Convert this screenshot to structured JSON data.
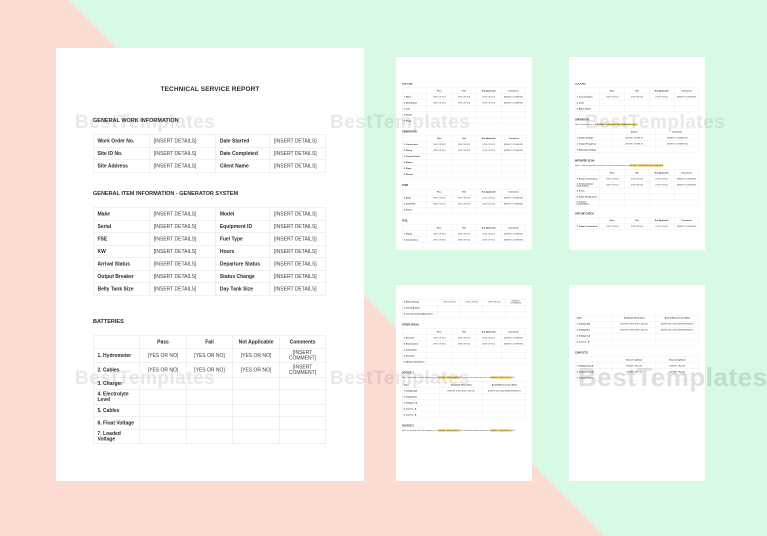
{
  "watermark": {
    "text": "BestTemplates"
  },
  "colors": {
    "background_pink": "#fbdbd2",
    "background_green": "#d8fae5",
    "highlight_yellow": "#fbd84a"
  },
  "page1": {
    "title": "TECHNICAL SERVICE REPORT",
    "work_info": {
      "heading": "GENERAL WORK INFORMATION",
      "table": {
        "rows": [
          [
            "Work Order No.",
            "[INSERT DETAILS]",
            "Date Started",
            "[INSERT DETAILS]"
          ],
          [
            "Site ID No.",
            "[INSERT DETAILS]",
            "Date Completed",
            "[INSERT DETAILS]"
          ],
          [
            "Site Address",
            "[INSERT DETAILS]",
            "Client Name",
            "[INSERT DETAILS]"
          ]
        ]
      }
    },
    "item_info": {
      "heading": "GENERAL ITEM INFORMATION - GENERATOR SYSTEM",
      "table": {
        "rows": [
          [
            "Make",
            "[INSERT DETAILS]",
            "Model",
            "[INSERT DETAILS]"
          ],
          [
            "Serial",
            "[INSERT DETAILS]",
            "Equipment ID",
            "[INSERT DETAILS]"
          ],
          [
            "FSE",
            "[INSERT DETAILS]",
            "Fuel Type",
            "[INSERT DETAILS]"
          ],
          [
            "KW",
            "[INSERT DETAILS]",
            "Hours",
            "[INSERT DETAILS]"
          ],
          [
            "Arrival Status",
            "[INSERT DETAILS]",
            "Departure Status",
            "[INSERT DETAILS]"
          ],
          [
            "Output Breaker",
            "[INSERT DETAILS]",
            "Status Change",
            "[INSERT DETAILS]"
          ],
          [
            "Belly Tank Size",
            "[INSERT DETAILS]",
            "Day Tank Size",
            "[INSERT DETAILS]"
          ]
        ]
      }
    },
    "batteries": {
      "heading": "BATTERIES",
      "table": {
        "header": [
          "",
          "Pass",
          "Fail",
          "Not Applicable",
          "Comments"
        ],
        "rows": [
          [
            "1. Hydrometer",
            "[YES OR NO]",
            "[YES OR NO]",
            "[YES OR NO]",
            "[INSERT COMMENT]"
          ],
          [
            "2. Cables",
            "[YES OR NO]",
            "[YES OR NO]",
            "[YES OR NO]",
            "[INSERT COMMENT]"
          ],
          [
            "3. Charger",
            "",
            "",
            "",
            ""
          ],
          [
            "4. Electrolyte Level",
            "",
            "",
            "",
            ""
          ],
          [
            "5. Cables",
            "",
            "",
            "",
            ""
          ],
          [
            "6. Float Voltage",
            "",
            "",
            "",
            ""
          ],
          [
            "7. Loaded Voltage",
            "",
            "",
            "",
            ""
          ]
        ]
      }
    }
  },
  "page2": {
    "ignition": {
      "heading": "IGNITION",
      "table": {
        "header": [
          "",
          "Pass",
          "Fail",
          "Not Applicable",
          "Comments"
        ],
        "rows": [
          [
            "1. Wires",
            "[YES OR NO]",
            "[YES OR NO]",
            "[YES OR NO]",
            "[INSERT COMMENT]"
          ],
          [
            "2. Distributors",
            "[YES OR NO]",
            "[YES OR NO]",
            "[YES OR NO]",
            "[INSERT COMMENT]"
          ],
          [
            "3. Coil",
            "",
            "",
            "",
            ""
          ],
          [
            "4. Starter",
            "",
            "",
            "",
            ""
          ],
          [
            "5. Plugs",
            "",
            "",
            "",
            ""
          ]
        ]
      }
    },
    "generator": {
      "heading": "GENERATOR",
      "table": {
        "header": [
          "",
          "Pass",
          "Fail",
          "Not Applicable",
          "Comments"
        ],
        "rows": [
          [
            "1. Connections",
            "[YES OR NO]",
            "[YES OR NO]",
            "[YES OR NO]",
            "[INSERT COMMENT]"
          ],
          [
            "2. Wiring",
            "[YES OR NO]",
            "[YES OR NO]",
            "[YES OR NO]",
            "[INSERT COMMENT]"
          ],
          [
            "3. Control Panels",
            "",
            "",
            "",
            ""
          ],
          [
            "4. Alarms",
            "",
            "",
            "",
            ""
          ],
          [
            "5. Rings",
            "",
            "",
            "",
            ""
          ],
          [
            "6. Mounts",
            "",
            "",
            "",
            ""
          ]
        ]
      }
    },
    "tank": {
      "heading": "TANK",
      "table": {
        "header": [
          "",
          "Pass",
          "Fail",
          "Not Applicable",
          "Comments"
        ],
        "rows": [
          [
            "1. Body",
            "[YES OR NO]",
            "[YES OR NO]",
            "[YES OR NO]",
            "[INSERT COMMENT]"
          ],
          [
            "2. Fuel Filter",
            "[YES OR NO]",
            "[YES OR NO]",
            "[YES OR NO]",
            "[INSERT COMMENT]"
          ],
          [
            "3. Primer",
            "",
            "",
            "",
            ""
          ]
        ]
      }
    },
    "fuel": {
      "heading": "FUEL",
      "table": {
        "header": [
          "",
          "Pass",
          "Fail",
          "Not Applicable",
          "Comments"
        ],
        "rows": [
          [
            "1. Piping",
            "[YES OR NO]",
            "[YES OR NO]",
            "[YES OR NO]",
            "[INSERT COMMENT]"
          ],
          [
            "2. Connections",
            "[YES OR NO]",
            "[YES OR NO]",
            "[YES OR NO]",
            "[INSERT COMMENT]"
          ]
        ]
      }
    }
  },
  "page3": {
    "cooling": {
      "heading": "COOLING",
      "table": {
        "header": [
          "",
          "Pass",
          "Fail",
          "Not Applicable",
          "Comments"
        ],
        "rows": [
          [
            "1. Concentration",
            "[YES OR NO]",
            "[YES OR NO]",
            "[YES OR NO]",
            "[INSERT COMMENT]"
          ],
          [
            "2. Level",
            "",
            "",
            "",
            ""
          ],
          [
            "3. Block Heater",
            "",
            "",
            "",
            ""
          ]
        ]
      }
    },
    "operation": {
      "heading": "OPERATION",
      "note": [
        {
          "t": "Note: Running form is at ",
          "hl": false
        },
        {
          "t": "[INSERT TEMPERATURE READING POINT]",
          "hl": true
        },
        {
          "t": ".",
          "hl": false
        }
      ],
      "table": {
        "header": [
          "",
          "Details",
          "Comments"
        ],
        "rows": [
          [
            "1. Output Voltage",
            "[INSERT DETAILS]",
            "[INSERT COMMENTS]"
          ],
          [
            "2. Output Frequency",
            "[INSERT DETAILS]",
            "[INSERT COMMENTS]"
          ],
          [
            "3. Alternator Voltage",
            "",
            ""
          ]
        ]
      }
    },
    "infrared": {
      "heading": "INFRARED SCAN",
      "note": [
        {
          "t": "Note: Cable temperature reached a maximum temperature of ",
          "hl": false
        },
        {
          "t": "[INSERT TEMPERATURE READING]",
          "hl": true
        },
        {
          "t": ".",
          "hl": false
        }
      ],
      "table": {
        "header": [
          "",
          "Pass",
          "Fail",
          "Not Applicable",
          "Comments"
        ],
        "rows": [
          [
            "1. Power Connections",
            "[YES OR NO]",
            "[YES OR NO]",
            "[YES OR NO]",
            "[INSERT COMMENT]"
          ],
          [
            "2. Semiconductor Connections",
            "[YES OR NO]",
            "[YES OR NO]",
            "[YES OR NO]",
            "[INSERT COMMENT]"
          ],
          [
            "3. Fuses",
            "",
            "",
            "",
            ""
          ],
          [
            "4. Cable Temperature",
            "",
            "",
            "",
            ""
          ],
          [
            "5. Control Connections",
            "",
            "",
            "",
            ""
          ]
        ]
      }
    },
    "offline": {
      "heading": "OFFLINE CHECK",
      "table": {
        "header": [
          "",
          "Pass",
          "Fail",
          "Not Applicable",
          "Comments"
        ],
        "rows": [
          [
            "1. Power Connections",
            "[YES OR NO]",
            "[YES OR NO]",
            "[YES OR NO]",
            "[INSERT COMMENT]"
          ]
        ]
      }
    }
  },
  "page4": {
    "offline_cont": {
      "table": {
        "rows": [
          [
            "2. Relay Testing",
            "[YES OR NO]",
            "[YES OR NO]",
            "[YES OR NO]",
            "[INSERT COMMENT]"
          ],
          [
            "3. Circuit Boards",
            "",
            "",
            "",
            ""
          ],
          [
            "4. Control Contact Adjustment",
            "",
            "",
            "",
            ""
          ]
        ]
      }
    },
    "other_visual": {
      "heading": "OTHER VISUAL",
      "table": {
        "header": [
          "",
          "Pass",
          "Fail",
          "Not Applicable",
          "Comments"
        ],
        "rows": [
          [
            "1. Structure",
            "[YES OR NO]",
            "[YES OR NO]",
            "[YES OR NO]",
            "[INSERT COMMENT]"
          ],
          [
            "2. Environment",
            "[YES OR NO]",
            "[YES OR NO]",
            "[YES OR NO]",
            "[INSERT COMMENT]"
          ],
          [
            "3. Lubrication",
            "",
            "",
            "",
            ""
          ],
          [
            "4. Structure",
            "",
            "",
            "",
            ""
          ],
          [
            "5. Module Cleanliness",
            "",
            "",
            "",
            ""
          ]
        ]
      }
    },
    "source1": {
      "heading": "SOURCE 1",
      "note": [
        {
          "t": "Note: Displayed value for frequency is at ",
          "hl": false
        },
        {
          "t": "[INSERT FREQUENCY]",
          "hl": true
        },
        {
          "t": " Hz and actual measurement is at ",
          "hl": false
        },
        {
          "t": "[INSERT FREQUENCY]",
          "hl": true
        },
        {
          "t": " Hz.",
          "hl": false
        }
      ],
      "table": {
        "header": [
          "Value",
          "Displayed Value (Vac)",
          "Actual Measurement (Vac)"
        ],
        "rows": [
          [
            "1. Voltage A-B",
            "[INSERT DISPLAYED VALUE]",
            "[INSERT ACTUAL MEASUREMENT]"
          ],
          [
            "2. Voltage B-C",
            "",
            ""
          ],
          [
            "3. Voltage C-A",
            "",
            ""
          ],
          [
            "4. Current - A",
            "",
            ""
          ],
          [
            "5. Current - B",
            "",
            ""
          ]
        ]
      }
    },
    "source2": {
      "heading": "SOURCE 2",
      "note": [
        {
          "t": "Note: Displayed value for frequency is at ",
          "hl": false
        },
        {
          "t": "[INSERT FREQUENCY]",
          "hl": true
        },
        {
          "t": " Hz and actual measurement is at ",
          "hl": false
        },
        {
          "t": "[INSERT FREQUENCY]",
          "hl": true
        },
        {
          "t": " Hz.",
          "hl": false
        }
      ]
    }
  },
  "page5": {
    "readings": {
      "table": {
        "header": [
          "Value",
          "Displayed Value (Vac)",
          "Actual Measurement (Vac)"
        ],
        "rows": [
          [
            "1. Voltage A-B",
            "[INSERT DISPLAYED VALUE]",
            "[INSERT ACTUAL MEASUREMENT]"
          ],
          [
            "2. Voltage B-C",
            "[INSERT DISPLAYED VALUE]",
            "[INSERT ACTUAL MEASUREMENT]"
          ],
          [
            "3. Voltage C-A",
            "",
            ""
          ],
          [
            "4. Current - B",
            "",
            ""
          ]
        ]
      }
    },
    "contacts": {
      "heading": "CONTACTS",
      "table": {
        "header": [
          "",
          "Source 1 (phase)",
          "Source 2 (phase)"
        ],
        "rows": [
          [
            "1. Voltage Drop A",
            "[INSERT VALUE]",
            "[INSERT VALUE]"
          ],
          [
            "2. Voltage Drop B",
            "[INSERT VALUE]",
            "[INSERT VALUE]"
          ],
          [
            "3. Voltage Drop C",
            "",
            ""
          ]
        ]
      }
    }
  }
}
